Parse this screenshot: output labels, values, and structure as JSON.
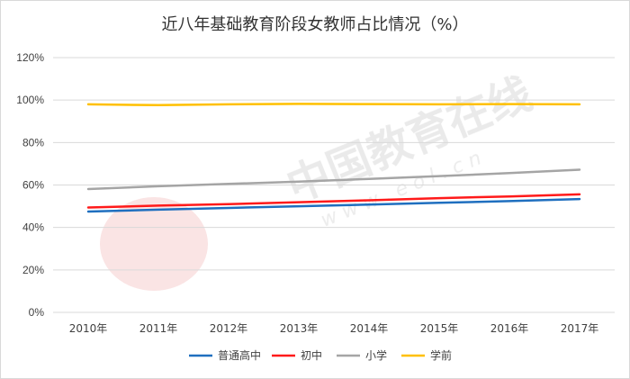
{
  "chart_data": {
    "type": "line",
    "title": "近八年基础教育阶段女教师占比情况（%）",
    "x": [
      "2010年",
      "2011年",
      "2012年",
      "2013年",
      "2014年",
      "2015年",
      "2016年",
      "2017年"
    ],
    "y_ticks": [
      "0%",
      "20%",
      "40%",
      "60%",
      "80%",
      "100%",
      "120%"
    ],
    "ylim": [
      0,
      120
    ],
    "grid": true,
    "legend_position": "bottom",
    "series": [
      {
        "name": "普通高中",
        "color": "#1f6fbf",
        "values": [
          47.5,
          48.4,
          49.2,
          50.0,
          50.8,
          51.6,
          52.4,
          53.4
        ]
      },
      {
        "name": "初中",
        "color": "#ff1a1a",
        "values": [
          49.4,
          50.3,
          51.0,
          51.9,
          52.8,
          53.8,
          54.6,
          55.6
        ]
      },
      {
        "name": "小学",
        "color": "#a5a5a5",
        "values": [
          58.1,
          59.4,
          60.5,
          61.6,
          62.9,
          64.2,
          65.6,
          67.2
        ]
      },
      {
        "name": "学前",
        "color": "#ffc000",
        "values": [
          98.0,
          97.6,
          98.0,
          98.2,
          98.1,
          98.0,
          98.1,
          98.0
        ]
      }
    ]
  },
  "watermark": {
    "brand_cn": "中国教育在线",
    "brand_url": "w w w . e o l . c n"
  }
}
